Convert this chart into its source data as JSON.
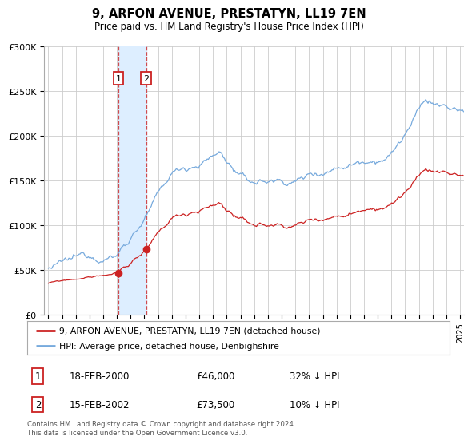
{
  "title": "9, ARFON AVENUE, PRESTATYN, LL19 7EN",
  "subtitle": "Price paid vs. HM Land Registry's House Price Index (HPI)",
  "footer": "Contains HM Land Registry data © Crown copyright and database right 2024.\nThis data is licensed under the Open Government Licence v3.0.",
  "legend": [
    {
      "label": "9, ARFON AVENUE, PRESTATYN, LL19 7EN (detached house)",
      "color": "#cc2222"
    },
    {
      "label": "HPI: Average price, detached house, Denbighshire",
      "color": "#77aadd"
    }
  ],
  "transactions": [
    {
      "num": 1,
      "date": "18-FEB-2000",
      "price": 46000,
      "hpi_pct": "32% ↓ HPI",
      "x_year": 2000.12
    },
    {
      "num": 2,
      "date": "15-FEB-2002",
      "price": 73500,
      "hpi_pct": "10% ↓ HPI",
      "x_year": 2002.12
    }
  ],
  "ylim": [
    0,
    300000
  ],
  "yticks": [
    0,
    50000,
    100000,
    150000,
    200000,
    250000,
    300000
  ],
  "xlim_start": 1994.7,
  "xlim_end": 2025.3,
  "background_color": "#ffffff",
  "grid_color": "#cccccc",
  "shaded_region_color": "#ddeeff",
  "transaction_marker_color": "#cc2222",
  "transaction_marker_size": 7,
  "hpi_seed": 12345,
  "price_seed": 99
}
